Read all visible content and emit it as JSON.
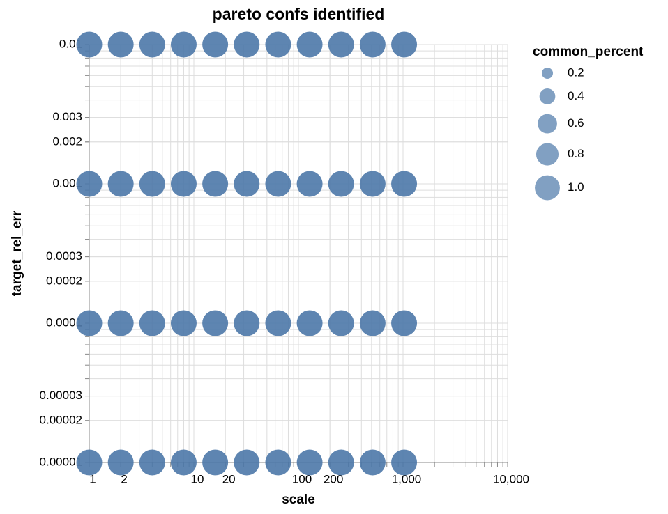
{
  "chart_data": {
    "type": "scatter",
    "title": "pareto confs identified",
    "x_label": "scale",
    "y_label": "target_rel_err",
    "x_log": true,
    "y_log": true,
    "grid": true,
    "color": "#4c78a8",
    "xlim": [
      1,
      10000
    ],
    "ylim": [
      1e-05,
      0.01
    ],
    "xticks": [
      1,
      2,
      10,
      20,
      100,
      200,
      {
        "value": 1000,
        "label": "1,000"
      },
      {
        "value": 10000,
        "label": "10,000"
      }
    ],
    "yticks": [
      0.01,
      0.003,
      0.002,
      0.001,
      0.0003,
      0.0002,
      0.0001,
      3e-05,
      2e-05,
      1e-05
    ],
    "x": [
      1,
      2,
      4,
      8,
      16,
      32,
      64,
      128,
      256,
      512,
      1024,
      1,
      2,
      4,
      8,
      16,
      32,
      64,
      128,
      256,
      512,
      1024,
      1,
      2,
      4,
      8,
      16,
      32,
      64,
      128,
      256,
      512,
      1024,
      1,
      2,
      4,
      8,
      16,
      32,
      64,
      128,
      256,
      512,
      1024
    ],
    "y": [
      0.01,
      0.01,
      0.01,
      0.01,
      0.01,
      0.01,
      0.01,
      0.01,
      0.01,
      0.01,
      0.01,
      0.001,
      0.001,
      0.001,
      0.001,
      0.001,
      0.001,
      0.001,
      0.001,
      0.001,
      0.001,
      0.001,
      0.0001,
      0.0001,
      0.0001,
      0.0001,
      0.0001,
      0.0001,
      0.0001,
      0.0001,
      0.0001,
      0.0001,
      0.0001,
      1e-05,
      1e-05,
      1e-05,
      1e-05,
      1e-05,
      1e-05,
      1e-05,
      1e-05,
      1e-05,
      1e-05,
      1e-05
    ],
    "size": [
      1,
      1,
      1,
      1,
      1,
      1,
      1,
      1,
      1,
      1,
      1,
      1,
      1,
      1,
      1,
      1,
      1,
      1,
      1,
      1,
      1,
      1,
      1,
      1,
      1,
      1,
      1,
      1,
      1,
      1,
      1,
      1,
      1,
      1,
      1,
      1,
      1,
      1,
      1,
      1,
      1,
      1,
      1,
      1
    ],
    "legend": {
      "title": "common_percent",
      "position": "right",
      "values": [
        0.2,
        0.4,
        0.6,
        0.8,
        1.0
      ],
      "labels": [
        "0.2",
        "0.4",
        "0.6",
        "0.8",
        "1.0"
      ]
    }
  }
}
